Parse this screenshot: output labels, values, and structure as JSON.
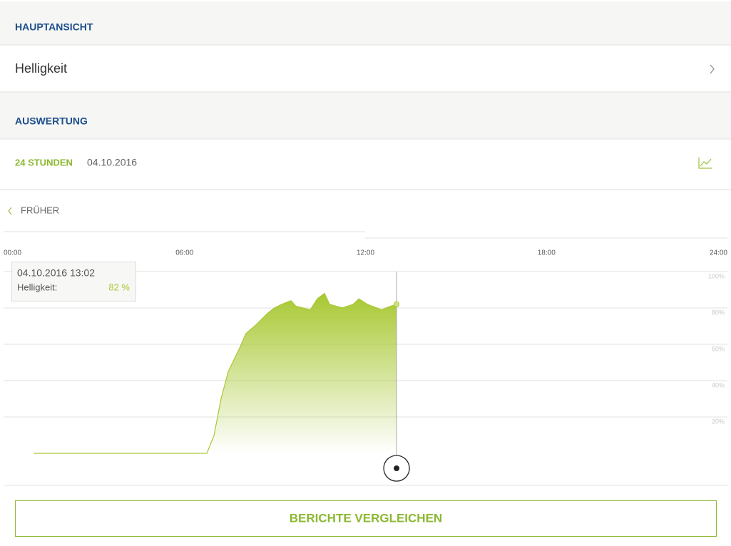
{
  "header": {
    "section1": "HAUPTANSICHT",
    "item": "Helligkeit",
    "section2": "AUSWERTUNG",
    "range": "24 STUNDEN",
    "date": "04.10.2016",
    "back": "FRÜHER",
    "button": "BERICHTE VERGLEICHEN"
  },
  "chart_data": {
    "type": "area",
    "x": [
      1.0,
      6.74,
      6.98,
      7.21,
      7.45,
      7.8,
      8.04,
      8.39,
      8.75,
      8.98,
      9.22,
      9.53,
      9.69,
      10.17,
      10.4,
      10.64,
      10.81,
      11.23,
      11.59,
      11.78,
      12.06,
      12.53,
      12.84,
      13.03
    ],
    "series": [
      {
        "name": "Helligkeit:",
        "color": "#a8c832",
        "values": [
          0,
          0,
          10,
          30,
          45,
          57,
          66,
          71,
          77,
          80,
          82,
          84,
          81,
          79,
          85,
          88,
          82,
          80,
          82,
          85,
          82,
          79,
          81,
          82
        ]
      }
    ],
    "xlim": [
      0,
      24
    ],
    "xticks": [
      {
        "value": 0,
        "label": "00:00"
      },
      {
        "value": 6,
        "label": "06:00"
      },
      {
        "value": 12,
        "label": "12:00"
      },
      {
        "value": 18,
        "label": "18:00"
      },
      {
        "value": 24,
        "label": "24:00"
      }
    ],
    "ylim": [
      0,
      100
    ],
    "yticks": [
      {
        "value": 20,
        "label": "20%"
      },
      {
        "value": 40,
        "label": "40%"
      },
      {
        "value": 60,
        "label": "60%"
      },
      {
        "value": 80,
        "label": "80%"
      },
      {
        "value": 100,
        "label": "100%"
      }
    ],
    "grid": true,
    "tooltip": {
      "title": "04.10.2016 13:02",
      "value": 82,
      "value_label": "82 %"
    }
  }
}
